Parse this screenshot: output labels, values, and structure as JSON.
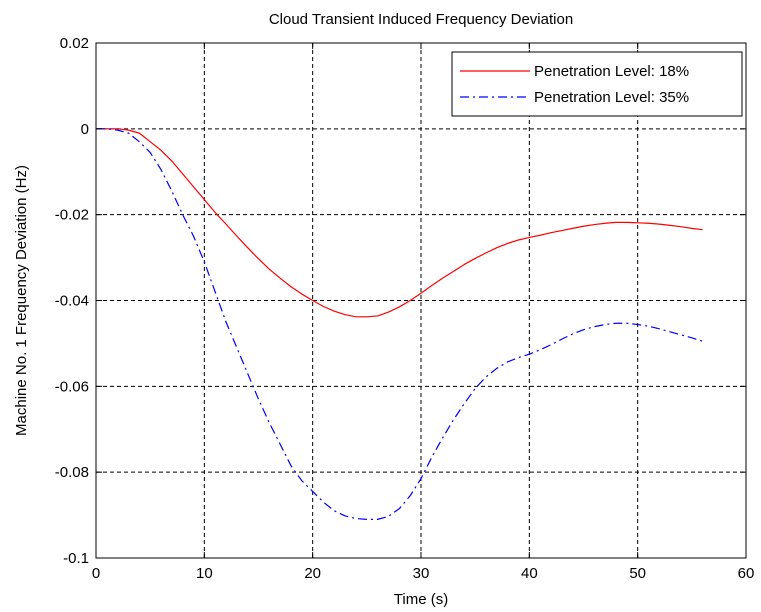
{
  "chart_data": {
    "type": "line",
    "title": "Cloud Transient Induced Frequency Deviation",
    "xlabel": "Time (s)",
    "ylabel": "Machine No. 1 Frequency Deviation (Hz)",
    "xlim": [
      0,
      60
    ],
    "ylim": [
      -0.1,
      0.02
    ],
    "xticks": [
      0,
      10,
      20,
      30,
      40,
      50,
      60
    ],
    "yticks": [
      0.02,
      0,
      -0.02,
      -0.04,
      -0.06,
      -0.08,
      -0.1
    ],
    "xtick_labels": [
      "0",
      "10",
      "20",
      "30",
      "40",
      "50",
      "60"
    ],
    "ytick_labels": [
      "0.02",
      "0",
      "-0.02",
      "-0.04",
      "-0.06",
      "-0.08",
      "-0.1"
    ],
    "grid": true,
    "legend_position": "top-right",
    "series": [
      {
        "name": "Penetration Level: 18%",
        "color": "#ff0000",
        "style": "solid",
        "x": [
          0,
          1,
          2,
          3,
          4,
          5,
          6,
          7,
          8,
          9,
          10,
          11,
          12,
          13,
          14,
          15,
          16,
          17,
          18,
          19,
          20,
          21,
          22,
          23,
          24,
          25,
          26,
          27,
          28,
          29,
          30,
          31,
          32,
          33,
          34,
          35,
          36,
          37,
          38,
          39,
          40,
          41,
          42,
          43,
          44,
          45,
          46,
          47,
          48,
          49,
          50,
          51,
          52,
          53,
          54,
          55,
          56
        ],
        "y": [
          0,
          0,
          0,
          -0.0003,
          -0.001,
          -0.003,
          -0.005,
          -0.0075,
          -0.0105,
          -0.0135,
          -0.0165,
          -0.0195,
          -0.0222,
          -0.025,
          -0.0277,
          -0.0303,
          -0.0327,
          -0.0348,
          -0.0368,
          -0.0385,
          -0.04,
          -0.0414,
          -0.0425,
          -0.0433,
          -0.0438,
          -0.0438,
          -0.0436,
          -0.0427,
          -0.0415,
          -0.04,
          -0.0383,
          -0.0365,
          -0.0348,
          -0.0332,
          -0.0316,
          -0.0302,
          -0.0289,
          -0.0277,
          -0.0267,
          -0.0259,
          -0.0253,
          -0.0248,
          -0.0242,
          -0.0237,
          -0.0232,
          -0.0227,
          -0.0223,
          -0.022,
          -0.0218,
          -0.0218,
          -0.0219,
          -0.022,
          -0.0222,
          -0.0225,
          -0.0228,
          -0.0232,
          -0.0235
        ]
      },
      {
        "name": "Penetration Level: 35%",
        "color": "#0000ff",
        "style": "dashdot",
        "x": [
          0,
          1,
          2,
          3,
          4,
          5,
          6,
          7,
          8,
          9,
          10,
          11,
          12,
          13,
          14,
          15,
          16,
          17,
          18,
          19,
          20,
          21,
          22,
          23,
          24,
          25,
          26,
          27,
          28,
          29,
          30,
          31,
          32,
          33,
          34,
          35,
          36,
          37,
          38,
          39,
          40,
          41,
          42,
          43,
          44,
          45,
          46,
          47,
          48,
          49,
          50,
          51,
          52,
          53,
          54,
          55,
          56
        ],
        "y": [
          0,
          0,
          -0.0003,
          -0.001,
          -0.003,
          -0.0055,
          -0.0095,
          -0.0145,
          -0.02,
          -0.025,
          -0.031,
          -0.038,
          -0.045,
          -0.051,
          -0.057,
          -0.063,
          -0.0685,
          -0.0735,
          -0.0785,
          -0.082,
          -0.0845,
          -0.087,
          -0.089,
          -0.0902,
          -0.0908,
          -0.091,
          -0.091,
          -0.0903,
          -0.0885,
          -0.0855,
          -0.0815,
          -0.0765,
          -0.072,
          -0.0678,
          -0.064,
          -0.0605,
          -0.0578,
          -0.0558,
          -0.0543,
          -0.0533,
          -0.0525,
          -0.0515,
          -0.0503,
          -0.049,
          -0.0478,
          -0.0468,
          -0.0461,
          -0.0456,
          -0.0453,
          -0.0453,
          -0.0456,
          -0.046,
          -0.0466,
          -0.0473,
          -0.048,
          -0.0487,
          -0.0495
        ]
      }
    ]
  }
}
